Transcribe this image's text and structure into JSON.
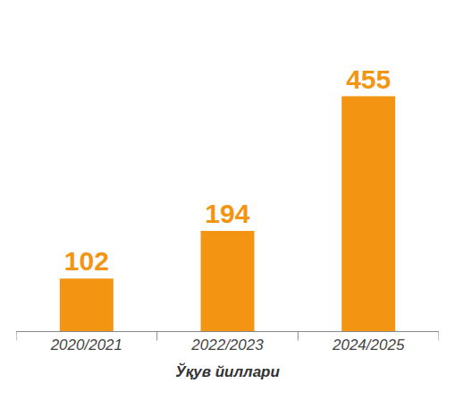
{
  "chart_data": {
    "type": "bar",
    "categories": [
      "2020/2021",
      "2022/2023",
      "2024/2025"
    ],
    "values": [
      102,
      194,
      455
    ],
    "color": "#f39512",
    "xlabel": "Ўқув йиллари",
    "ylim": [
      0,
      520
    ],
    "data_labels": true,
    "tick_labels": "x",
    "grid": false
  }
}
